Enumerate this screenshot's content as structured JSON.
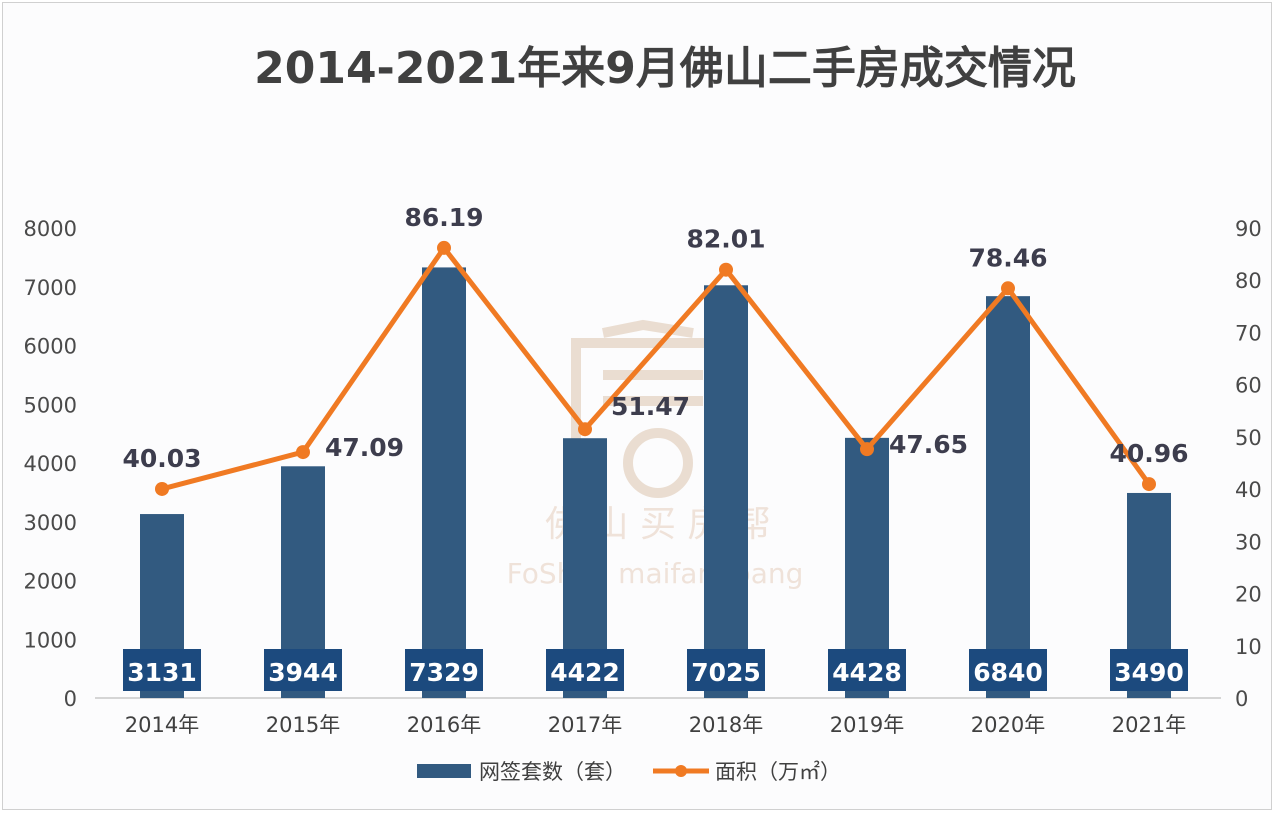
{
  "chart_data": {
    "type": "bar+line",
    "title": "2014-2021年来9月佛山二手房成交情况",
    "categories": [
      "2014年",
      "2015年",
      "2016年",
      "2017年",
      "2018年",
      "2019年",
      "2020年",
      "2021年"
    ],
    "series": [
      {
        "name": "网签套数（套）",
        "type": "bar",
        "axis": "left",
        "color": "#325a80",
        "values": [
          3131,
          3944,
          7329,
          4422,
          7025,
          4428,
          6840,
          3490
        ],
        "labels": [
          "3131",
          "3944",
          "7329",
          "4422",
          "7025",
          "4428",
          "6840",
          "3490"
        ]
      },
      {
        "name": "面积（万㎡）",
        "type": "line",
        "axis": "right",
        "color": "#f07a23",
        "values": [
          40.03,
          47.09,
          86.19,
          51.47,
          82.01,
          47.65,
          78.46,
          40.96
        ],
        "labels": [
          "40.03",
          "47.09",
          "86.19",
          "51.47",
          "82.01",
          "47.65",
          "78.46",
          "40.96"
        ]
      }
    ],
    "y_left": {
      "range": [
        0,
        8000
      ],
      "ticks": [
        "0",
        "1000",
        "2000",
        "3000",
        "4000",
        "5000",
        "6000",
        "7000",
        "8000"
      ]
    },
    "y_right": {
      "range": [
        0,
        90
      ],
      "ticks": [
        "0",
        "10",
        "20",
        "30",
        "40",
        "50",
        "60",
        "70",
        "80",
        "90"
      ]
    },
    "grid": false,
    "legend": {
      "placement": "bottom",
      "bar_label": "网签套数（套）",
      "line_label": "面积（万㎡）"
    },
    "label_box_color": "#1c4a7e"
  },
  "watermark": {
    "cn": "佛 山 买 房 帮",
    "en": "FoShan maifangbang"
  }
}
